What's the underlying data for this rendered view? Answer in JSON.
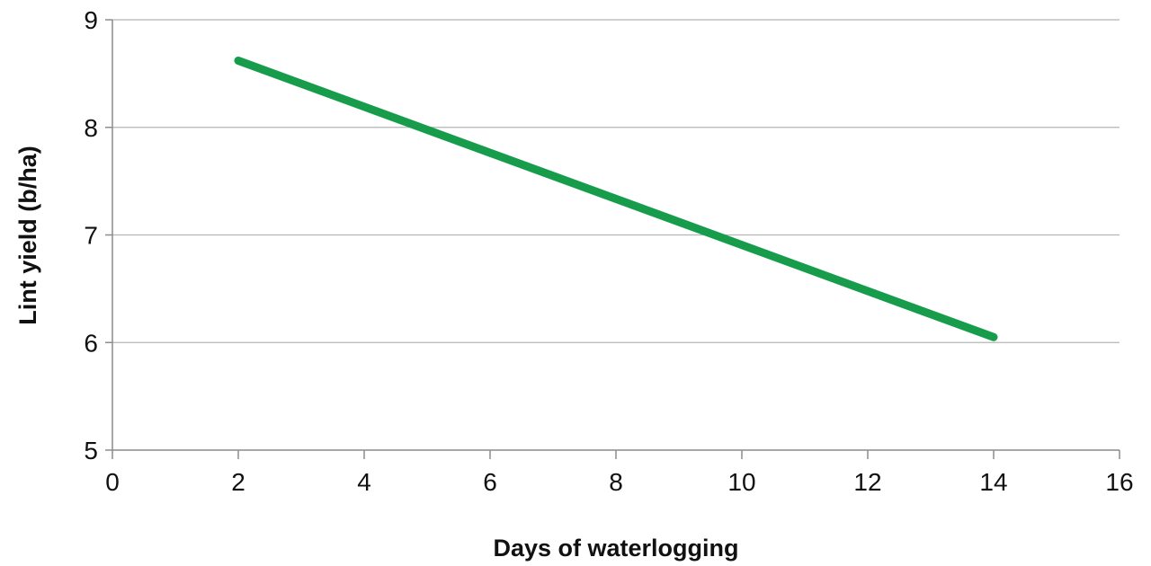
{
  "chart_data": {
    "type": "line",
    "title": "",
    "xlabel": "Days of waterlogging",
    "ylabel": "Lint yield (b/ha)",
    "xlim": [
      0,
      16
    ],
    "ylim": [
      5,
      9
    ],
    "xticks": [
      0,
      2,
      4,
      6,
      8,
      10,
      12,
      14,
      16
    ],
    "yticks": [
      5,
      6,
      7,
      8,
      9
    ],
    "grid": "horizontal",
    "legend": "none",
    "series": [
      {
        "color": "#169c4b",
        "x": [
          2,
          14
        ],
        "y": [
          8.62,
          6.05
        ]
      }
    ]
  }
}
